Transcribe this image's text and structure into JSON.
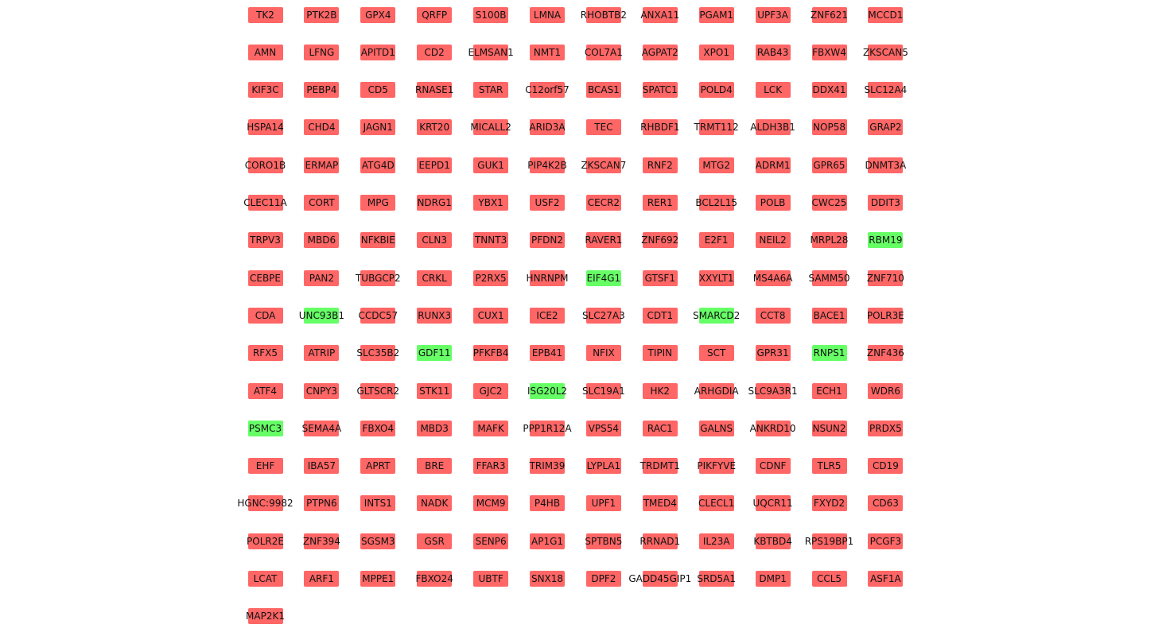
{
  "colors": {
    "down": "#ff6666",
    "up": "#66ff66"
  },
  "genes": [
    [
      "TK2",
      "d"
    ],
    [
      "PTK2B",
      "d"
    ],
    [
      "GPX4",
      "d"
    ],
    [
      "QRFP",
      "d"
    ],
    [
      "S100B",
      "d"
    ],
    [
      "LMNA",
      "d"
    ],
    [
      "RHOBTB2",
      "d"
    ],
    [
      "ANXA11",
      "d"
    ],
    [
      "PGAM1",
      "d"
    ],
    [
      "UPF3A",
      "d"
    ],
    [
      "ZNF621",
      "d"
    ],
    [
      "MCCD1",
      "d"
    ],
    [
      "AMN",
      "d"
    ],
    [
      "LFNG",
      "d"
    ],
    [
      "APITD1",
      "d"
    ],
    [
      "CD2",
      "d"
    ],
    [
      "ELMSAN1",
      "d"
    ],
    [
      "NMT1",
      "d"
    ],
    [
      "COL7A1",
      "d"
    ],
    [
      "AGPAT2",
      "d"
    ],
    [
      "XPO1",
      "d"
    ],
    [
      "RAB43",
      "d"
    ],
    [
      "FBXW4",
      "d"
    ],
    [
      "ZKSCAN5",
      "d"
    ],
    [
      "KIF3C",
      "d"
    ],
    [
      "PEBP4",
      "d"
    ],
    [
      "CD5",
      "d"
    ],
    [
      "RNASE1",
      "d"
    ],
    [
      "STAR",
      "d"
    ],
    [
      "C12orf57",
      "d"
    ],
    [
      "BCAS1",
      "d"
    ],
    [
      "SPATC1",
      "d"
    ],
    [
      "POLD4",
      "d"
    ],
    [
      "LCK",
      "d"
    ],
    [
      "DDX41",
      "d"
    ],
    [
      "SLC12A4",
      "d"
    ],
    [
      "HSPA14",
      "d"
    ],
    [
      "CHD4",
      "d"
    ],
    [
      "JAGN1",
      "d"
    ],
    [
      "KRT20",
      "d"
    ],
    [
      "MICALL2",
      "d"
    ],
    [
      "ARID3A",
      "d"
    ],
    [
      "TEC",
      "d"
    ],
    [
      "RHBDF1",
      "d"
    ],
    [
      "TRMT112",
      "d"
    ],
    [
      "ALDH3B1",
      "d"
    ],
    [
      "NOP58",
      "d"
    ],
    [
      "GRAP2",
      "d"
    ],
    [
      "CORO1B",
      "d"
    ],
    [
      "ERMAP",
      "d"
    ],
    [
      "ATG4D",
      "d"
    ],
    [
      "EEPD1",
      "d"
    ],
    [
      "GUK1",
      "d"
    ],
    [
      "PIP4K2B",
      "d"
    ],
    [
      "ZKSCAN7",
      "d"
    ],
    [
      "RNF2",
      "d"
    ],
    [
      "MTG2",
      "d"
    ],
    [
      "ADRM1",
      "d"
    ],
    [
      "GPR65",
      "d"
    ],
    [
      "DNMT3A",
      "d"
    ],
    [
      "CLEC11A",
      "d"
    ],
    [
      "CORT",
      "d"
    ],
    [
      "MPG",
      "d"
    ],
    [
      "NDRG1",
      "d"
    ],
    [
      "YBX1",
      "d"
    ],
    [
      "USF2",
      "d"
    ],
    [
      "CECR2",
      "d"
    ],
    [
      "RER1",
      "d"
    ],
    [
      "BCL2L15",
      "d"
    ],
    [
      "POLB",
      "d"
    ],
    [
      "CWC25",
      "d"
    ],
    [
      "DDIT3",
      "d"
    ],
    [
      "TRPV3",
      "d"
    ],
    [
      "MBD6",
      "d"
    ],
    [
      "NFKBIE",
      "d"
    ],
    [
      "CLN3",
      "d"
    ],
    [
      "TNNT3",
      "d"
    ],
    [
      "PFDN2",
      "d"
    ],
    [
      "RAVER1",
      "d"
    ],
    [
      "ZNF692",
      "d"
    ],
    [
      "E2F1",
      "d"
    ],
    [
      "NEIL2",
      "d"
    ],
    [
      "MRPL28",
      "d"
    ],
    [
      "RBM19",
      "u"
    ],
    [
      "CEBPE",
      "d"
    ],
    [
      "PAN2",
      "d"
    ],
    [
      "TUBGCP2",
      "d"
    ],
    [
      "CRKL",
      "d"
    ],
    [
      "P2RX5",
      "d"
    ],
    [
      "HNRNPM",
      "d"
    ],
    [
      "EIF4G1",
      "u"
    ],
    [
      "GTSF1",
      "d"
    ],
    [
      "XXYLT1",
      "d"
    ],
    [
      "MS4A6A",
      "d"
    ],
    [
      "SAMM50",
      "d"
    ],
    [
      "ZNF710",
      "d"
    ],
    [
      "CDA",
      "d"
    ],
    [
      "UNC93B1",
      "u"
    ],
    [
      "CCDC57",
      "d"
    ],
    [
      "RUNX3",
      "d"
    ],
    [
      "CUX1",
      "d"
    ],
    [
      "ICE2",
      "d"
    ],
    [
      "SLC27A3",
      "d"
    ],
    [
      "CDT1",
      "d"
    ],
    [
      "SMARCD2",
      "u"
    ],
    [
      "CCT8",
      "d"
    ],
    [
      "BACE1",
      "d"
    ],
    [
      "POLR3E",
      "d"
    ],
    [
      "RFX5",
      "d"
    ],
    [
      "ATRIP",
      "d"
    ],
    [
      "SLC35B2",
      "d"
    ],
    [
      "GDF11",
      "u"
    ],
    [
      "PFKFB4",
      "d"
    ],
    [
      "EPB41",
      "d"
    ],
    [
      "NFIX",
      "d"
    ],
    [
      "TIPIN",
      "d"
    ],
    [
      "SCT",
      "d"
    ],
    [
      "GPR31",
      "d"
    ],
    [
      "RNPS1",
      "u"
    ],
    [
      "ZNF436",
      "d"
    ],
    [
      "ATF4",
      "d"
    ],
    [
      "CNPY3",
      "d"
    ],
    [
      "GLTSCR2",
      "d"
    ],
    [
      "STK11",
      "d"
    ],
    [
      "GJC2",
      "d"
    ],
    [
      "ISG20L2",
      "u"
    ],
    [
      "SLC19A1",
      "d"
    ],
    [
      "HK2",
      "d"
    ],
    [
      "ARHGDIA",
      "d"
    ],
    [
      "SLC9A3R1",
      "d"
    ],
    [
      "ECH1",
      "d"
    ],
    [
      "WDR6",
      "d"
    ],
    [
      "PSMC3",
      "u"
    ],
    [
      "SEMA4A",
      "d"
    ],
    [
      "FBXO4",
      "d"
    ],
    [
      "MBD3",
      "d"
    ],
    [
      "MAFK",
      "d"
    ],
    [
      "PPP1R12A",
      "d"
    ],
    [
      "VPS54",
      "d"
    ],
    [
      "RAC1",
      "d"
    ],
    [
      "GALNS",
      "d"
    ],
    [
      "ANKRD10",
      "d"
    ],
    [
      "NSUN2",
      "d"
    ],
    [
      "PRDX5",
      "d"
    ],
    [
      "EHF",
      "d"
    ],
    [
      "IBA57",
      "d"
    ],
    [
      "APRT",
      "d"
    ],
    [
      "BRE",
      "d"
    ],
    [
      "FFAR3",
      "d"
    ],
    [
      "TRIM39",
      "d"
    ],
    [
      "LYPLA1",
      "d"
    ],
    [
      "TRDMT1",
      "d"
    ],
    [
      "PIKFYVE",
      "d"
    ],
    [
      "CDNF",
      "d"
    ],
    [
      "TLR5",
      "d"
    ],
    [
      "CD19",
      "d"
    ],
    [
      "HGNC:9982",
      "d"
    ],
    [
      "PTPN6",
      "d"
    ],
    [
      "INTS1",
      "d"
    ],
    [
      "NADK",
      "d"
    ],
    [
      "MCM9",
      "d"
    ],
    [
      "P4HB",
      "d"
    ],
    [
      "UPF1",
      "d"
    ],
    [
      "TMED4",
      "d"
    ],
    [
      "CLECL1",
      "d"
    ],
    [
      "UQCR11",
      "d"
    ],
    [
      "FXYD2",
      "d"
    ],
    [
      "CD63",
      "d"
    ],
    [
      "POLR2E",
      "d"
    ],
    [
      "ZNF394",
      "d"
    ],
    [
      "SGSM3",
      "d"
    ],
    [
      "GSR",
      "d"
    ],
    [
      "SENP6",
      "d"
    ],
    [
      "AP1G1",
      "d"
    ],
    [
      "SPTBN5",
      "d"
    ],
    [
      "RRNAD1",
      "d"
    ],
    [
      "IL23A",
      "d"
    ],
    [
      "KBTBD4",
      "d"
    ],
    [
      "RPS19BP1",
      "d"
    ],
    [
      "PCGF3",
      "d"
    ],
    [
      "LCAT",
      "d"
    ],
    [
      "ARF1",
      "d"
    ],
    [
      "MPPE1",
      "d"
    ],
    [
      "FBXO24",
      "d"
    ],
    [
      "UBTF",
      "d"
    ],
    [
      "SNX18",
      "d"
    ],
    [
      "DPF2",
      "d"
    ],
    [
      "GADD45GIP1",
      "d"
    ],
    [
      "SRD5A1",
      "d"
    ],
    [
      "DMP1",
      "d"
    ],
    [
      "CCL5",
      "d"
    ],
    [
      "ASF1A",
      "d"
    ],
    [
      "MAP2K1",
      "d"
    ]
  ]
}
